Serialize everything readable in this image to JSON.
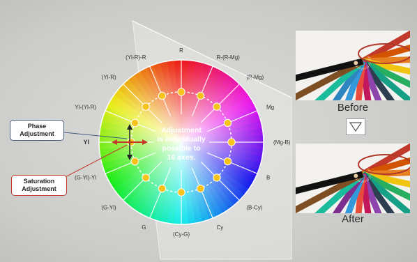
{
  "axis_labels": [
    "R",
    "R-(R-Mg)",
    "(R-Mg)",
    "Mg",
    "(Mg-B)",
    "B",
    "(B-Cy)",
    "Cy",
    "(Cy-G)",
    "G",
    "(G-Yl)",
    "(G-Yl)-Yl",
    "Yl",
    "Yl-(Yl-R)",
    "(Yl-R)",
    "(Yl-R)-R"
  ],
  "center_text": [
    "Adjustment",
    "is individually",
    "possible to",
    "16 axes."
  ],
  "callouts": {
    "phase": [
      "Phase",
      "Adjustment"
    ],
    "saturation": [
      "Saturation",
      "Adjustment"
    ]
  },
  "photos": {
    "before_caption": "Before",
    "after_caption": "After"
  },
  "colors": {
    "phase_border": "#4a5c80",
    "saturation_border": "#c0392b",
    "marker": "#f7c21a",
    "highlight_ring": "#b0382a",
    "phase_arrow": "#222222",
    "saturation_arrow": "#c0392b"
  },
  "icons": [
    "down-triangle-icon"
  ]
}
